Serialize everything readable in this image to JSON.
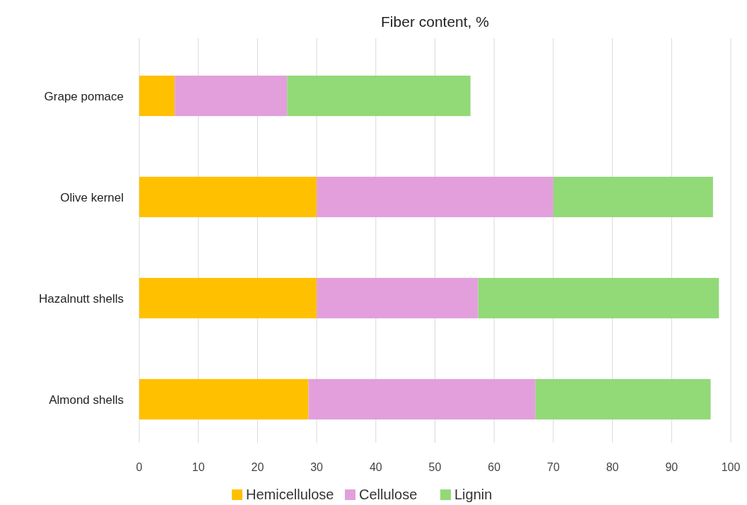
{
  "chart_data": {
    "type": "bar",
    "title": "Fiber content, %",
    "orientation": "horizontal",
    "stacked": true,
    "categories": [
      "Grape pomace",
      "Olive kernel",
      "Hazalnutt shells",
      "Almond shells"
    ],
    "series": [
      {
        "name": "Hemicellulose",
        "color": "#ffc000",
        "values": [
          6,
          30,
          30,
          28.6
        ]
      },
      {
        "name": "Cellulose",
        "color": "#e29fdc",
        "values": [
          19,
          40,
          27.3,
          38.4
        ]
      },
      {
        "name": "Lignin",
        "color": "#92d978",
        "values": [
          31,
          27,
          40.7,
          29.6
        ]
      }
    ],
    "xlim": [
      0,
      100
    ],
    "xticks": [
      0,
      10,
      20,
      30,
      40,
      50,
      60,
      70,
      80,
      90,
      100
    ],
    "grid": "x",
    "legend": "bottom"
  }
}
